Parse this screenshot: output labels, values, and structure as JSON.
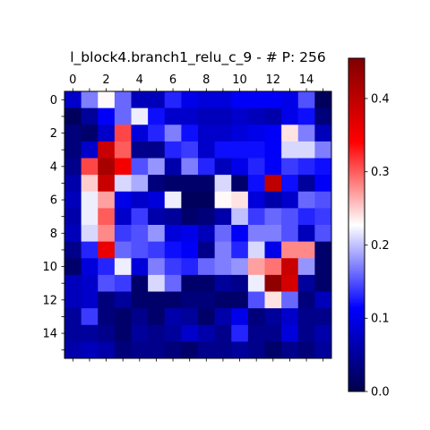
{
  "chart_data": {
    "type": "heatmap",
    "title": "l_block4.branch1_relu_c_9 - # P: 256",
    "colormap": "seismic",
    "rows": 16,
    "cols": 16,
    "x_ticks": [
      "0",
      "2",
      "4",
      "6",
      "8",
      "10",
      "12",
      "14"
    ],
    "y_ticks": [
      "0",
      "2",
      "4",
      "6",
      "8",
      "10",
      "12",
      "14"
    ],
    "colorbar": {
      "min": 0.0,
      "max": 0.455,
      "ticks": [
        "0.0",
        "0.1",
        "0.2",
        "0.3",
        "0.4"
      ],
      "tick_values": [
        0.0,
        0.1,
        0.2,
        0.3,
        0.4
      ]
    },
    "values": [
      [
        0.08,
        0.17,
        0.23,
        0.16,
        0.07,
        0.07,
        0.13,
        0.1,
        0.09,
        0.09,
        0.11,
        0.11,
        0.11,
        0.1,
        0.15,
        0.01
      ],
      [
        0.01,
        0.05,
        0.11,
        0.16,
        0.22,
        0.12,
        0.08,
        0.08,
        0.07,
        0.07,
        0.08,
        0.07,
        0.06,
        0.1,
        0.12,
        0.03
      ],
      [
        0.03,
        0.02,
        0.08,
        0.31,
        0.09,
        0.13,
        0.17,
        0.12,
        0.08,
        0.08,
        0.09,
        0.1,
        0.11,
        0.24,
        0.17,
        0.07
      ],
      [
        0.03,
        0.08,
        0.39,
        0.3,
        0.04,
        0.04,
        0.13,
        0.14,
        0.08,
        0.12,
        0.12,
        0.12,
        0.11,
        0.21,
        0.21,
        0.17
      ],
      [
        0.04,
        0.31,
        0.42,
        0.35,
        0.15,
        0.18,
        0.06,
        0.17,
        0.13,
        0.07,
        0.1,
        0.13,
        0.11,
        0.14,
        0.13,
        0.12
      ],
      [
        0.06,
        0.25,
        0.39,
        0.21,
        0.19,
        0.03,
        0.02,
        0.02,
        0.02,
        0.21,
        0.02,
        0.12,
        0.4,
        0.12,
        0.05,
        0.11
      ],
      [
        0.07,
        0.22,
        0.27,
        0.1,
        0.08,
        0.09,
        0.22,
        0.01,
        0.01,
        0.23,
        0.24,
        0.09,
        0.06,
        0.08,
        0.16,
        0.15
      ],
      [
        0.06,
        0.22,
        0.3,
        0.08,
        0.14,
        0.06,
        0.05,
        0.02,
        0.03,
        0.06,
        0.2,
        0.14,
        0.16,
        0.15,
        0.13,
        0.14
      ],
      [
        0.07,
        0.21,
        0.28,
        0.14,
        0.15,
        0.18,
        0.09,
        0.1,
        0.07,
        0.16,
        0.11,
        0.17,
        0.17,
        0.15,
        0.07,
        0.15
      ],
      [
        0.04,
        0.13,
        0.36,
        0.16,
        0.15,
        0.14,
        0.12,
        0.11,
        0.04,
        0.17,
        0.13,
        0.21,
        0.1,
        0.28,
        0.28,
        0.02
      ],
      [
        0.02,
        0.09,
        0.13,
        0.22,
        0.09,
        0.17,
        0.14,
        0.13,
        0.16,
        0.17,
        0.18,
        0.27,
        0.29,
        0.39,
        0.18,
        0.02
      ],
      [
        0.07,
        0.08,
        0.15,
        0.14,
        0.02,
        0.21,
        0.16,
        0.02,
        0.02,
        0.05,
        0.04,
        0.22,
        0.44,
        0.38,
        0.05,
        0.02
      ],
      [
        0.07,
        0.08,
        0.03,
        0.05,
        0.02,
        0.02,
        0.02,
        0.03,
        0.03,
        0.02,
        0.02,
        0.15,
        0.24,
        0.16,
        0.03,
        0.07
      ],
      [
        0.05,
        0.14,
        0.03,
        0.02,
        0.04,
        0.02,
        0.06,
        0.05,
        0.02,
        0.06,
        0.1,
        0.03,
        0.05,
        0.08,
        0.04,
        0.04
      ],
      [
        0.05,
        0.05,
        0.04,
        0.02,
        0.05,
        0.04,
        0.05,
        0.08,
        0.06,
        0.04,
        0.13,
        0.04,
        0.04,
        0.09,
        0.04,
        0.06
      ],
      [
        0.06,
        0.07,
        0.06,
        0.03,
        0.04,
        0.04,
        0.03,
        0.02,
        0.04,
        0.04,
        0.05,
        0.04,
        0.02,
        0.04,
        0.03,
        0.05
      ]
    ]
  }
}
